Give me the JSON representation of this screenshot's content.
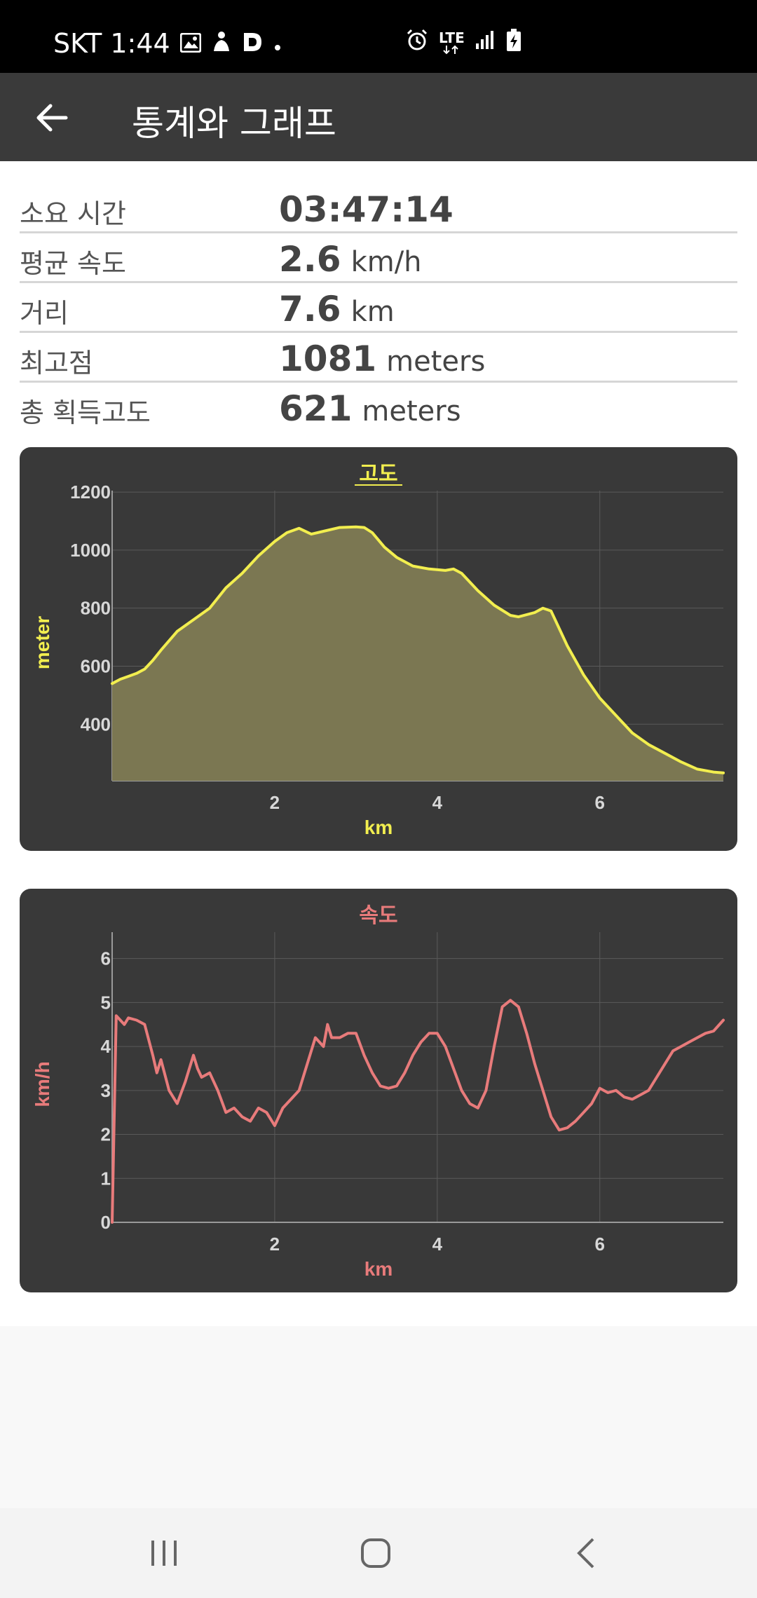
{
  "status_bar": {
    "time": "SKT 1:44",
    "network": "LTE",
    "icons": [
      "gallery-icon",
      "notification-icon",
      "d-app-icon",
      "dot-icon",
      "alarm-icon",
      "lte-icon",
      "signal-icon",
      "battery-charging-icon"
    ]
  },
  "toolbar": {
    "title": "통계와 그래프",
    "back_icon": "back-arrow-icon"
  },
  "stats": [
    {
      "label": "소요 시간",
      "value": "03:47:14",
      "unit": ""
    },
    {
      "label": "평균 속도",
      "value": "2.6",
      "unit": "km/h"
    },
    {
      "label": "거리",
      "value": "7.6",
      "unit": "km"
    },
    {
      "label": "최고점",
      "value": "1081",
      "unit": "meters"
    },
    {
      "label": "총 획득고도",
      "value": "621",
      "unit": "meters"
    }
  ],
  "colors": {
    "elevation_line": "#f2ee4f",
    "elevation_fill": "#7b7752",
    "speed_line": "#e87b7b",
    "card_bg": "#393939",
    "grid": "#5a5a5a"
  },
  "chart_data": [
    {
      "type": "area",
      "title": "고도",
      "xlabel": "km",
      "ylabel": "meter",
      "xlim": [
        0.0,
        7.52
      ],
      "ylim": [
        205,
        1205
      ],
      "xticks": [
        2,
        4,
        6
      ],
      "yticks": [
        400,
        600,
        800,
        1000,
        1200
      ],
      "grid": true,
      "x": [
        0.0,
        0.1,
        0.2,
        0.3,
        0.4,
        0.5,
        0.6,
        0.8,
        1.0,
        1.2,
        1.4,
        1.6,
        1.8,
        2.0,
        2.15,
        2.3,
        2.45,
        2.6,
        2.8,
        3.0,
        3.1,
        3.2,
        3.35,
        3.5,
        3.7,
        3.9,
        4.1,
        4.2,
        4.3,
        4.5,
        4.7,
        4.9,
        5.0,
        5.2,
        5.3,
        5.4,
        5.6,
        5.8,
        6.0,
        6.2,
        6.4,
        6.6,
        6.8,
        7.0,
        7.2,
        7.4,
        7.52
      ],
      "y": [
        540,
        555,
        565,
        575,
        590,
        620,
        655,
        720,
        760,
        800,
        870,
        920,
        980,
        1030,
        1060,
        1075,
        1055,
        1065,
        1078,
        1080,
        1078,
        1060,
        1010,
        975,
        945,
        935,
        930,
        935,
        920,
        860,
        810,
        775,
        770,
        785,
        800,
        790,
        670,
        570,
        490,
        430,
        370,
        330,
        300,
        270,
        245,
        235,
        232
      ]
    },
    {
      "type": "line",
      "title": "속도",
      "xlabel": "km",
      "ylabel": "km/h",
      "xlim": [
        0.0,
        7.52
      ],
      "ylim": [
        0,
        6.6
      ],
      "xticks": [
        2,
        4,
        6
      ],
      "yticks": [
        0,
        1,
        2,
        3,
        4,
        5,
        6
      ],
      "grid": true,
      "x": [
        0.0,
        0.05,
        0.1,
        0.15,
        0.2,
        0.3,
        0.4,
        0.5,
        0.55,
        0.6,
        0.7,
        0.8,
        0.9,
        1.0,
        1.05,
        1.1,
        1.2,
        1.3,
        1.4,
        1.5,
        1.6,
        1.7,
        1.8,
        1.9,
        2.0,
        2.1,
        2.2,
        2.3,
        2.4,
        2.5,
        2.6,
        2.65,
        2.7,
        2.8,
        2.9,
        3.0,
        3.1,
        3.2,
        3.3,
        3.4,
        3.5,
        3.6,
        3.7,
        3.8,
        3.9,
        4.0,
        4.1,
        4.2,
        4.3,
        4.4,
        4.5,
        4.6,
        4.7,
        4.8,
        4.9,
        5.0,
        5.1,
        5.2,
        5.3,
        5.4,
        5.5,
        5.6,
        5.7,
        5.8,
        5.9,
        6.0,
        6.1,
        6.2,
        6.3,
        6.4,
        6.5,
        6.6,
        6.7,
        6.8,
        6.9,
        7.0,
        7.1,
        7.2,
        7.3,
        7.4,
        7.52
      ],
      "y": [
        0,
        4.7,
        4.6,
        4.5,
        4.65,
        4.6,
        4.5,
        3.8,
        3.4,
        3.7,
        3.0,
        2.7,
        3.2,
        3.8,
        3.5,
        3.3,
        3.4,
        3.0,
        2.5,
        2.6,
        2.4,
        2.3,
        2.6,
        2.5,
        2.2,
        2.6,
        2.8,
        3.0,
        3.6,
        4.2,
        4.0,
        4.5,
        4.2,
        4.2,
        4.3,
        4.3,
        3.8,
        3.4,
        3.1,
        3.05,
        3.1,
        3.4,
        3.8,
        4.1,
        4.3,
        4.3,
        4.0,
        3.5,
        3.0,
        2.7,
        2.6,
        3.0,
        4.0,
        4.9,
        5.05,
        4.9,
        4.3,
        3.6,
        3.0,
        2.4,
        2.1,
        2.15,
        2.3,
        2.5,
        2.7,
        3.05,
        2.95,
        3.0,
        2.85,
        2.8,
        2.9,
        3.0,
        3.3,
        3.6,
        3.9,
        4.0,
        4.1,
        4.2,
        4.3,
        4.35,
        4.6
      ]
    }
  ]
}
